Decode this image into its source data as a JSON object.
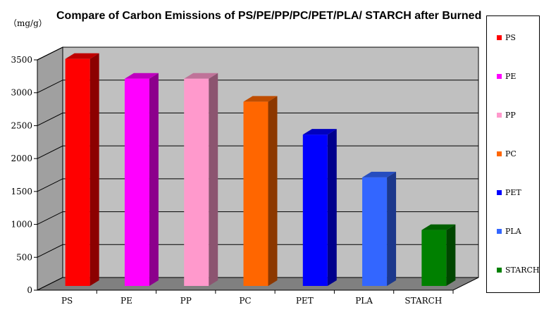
{
  "chart_data": {
    "type": "bar",
    "title": "Compare of Carbon Emissions of PS/PE/PP/PC/PET/PLA/ STARCH after Burned",
    "ylabel": "（mg/g）",
    "xlabel": "",
    "categories": [
      "PS",
      "PE",
      "PP",
      "PC",
      "PET",
      "PLA",
      "STARCH"
    ],
    "values": [
      3450,
      3150,
      3150,
      2800,
      2300,
      1650,
      850
    ],
    "colors": [
      "#ff0000",
      "#ff00ff",
      "#ff99cc",
      "#ff6600",
      "#0000ff",
      "#3366ff",
      "#008000"
    ],
    "ylim": [
      0,
      3500
    ],
    "yticks": [
      0,
      500,
      1000,
      1500,
      2000,
      2500,
      3000,
      3500
    ],
    "grid": true,
    "legend_position": "right"
  }
}
